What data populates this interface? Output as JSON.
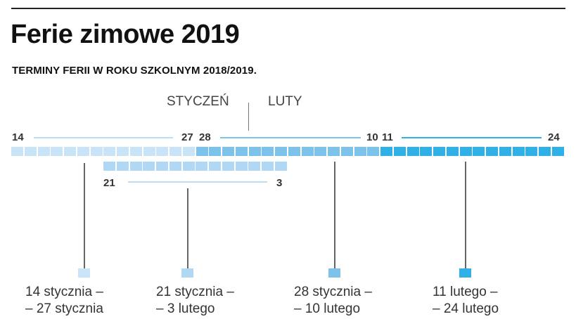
{
  "header": {
    "title": "Ferie zimowe 2019",
    "subtitle": "TERMINY FERII W ROKU SZKOLNYM 2018/2019."
  },
  "months": {
    "january": "STYCZEŃ",
    "february": "LUTY"
  },
  "ticks": {
    "t14": "14",
    "t27": "27",
    "t28": "28",
    "t10": "10",
    "t11": "11",
    "t24": "24",
    "t21": "21",
    "t3": "3"
  },
  "colors": {
    "group1": "#c9e3f7",
    "group2": "#b0d8f4",
    "group3": "#7cc3ec",
    "group4": "#2fb0e6",
    "line1": "#bcdcf2",
    "line3": "#7cc3ec",
    "line4": "#2fb0e6"
  },
  "legend": [
    {
      "line1": "14 stycznia –",
      "line2": "– 27 stycznia"
    },
    {
      "line1": "21 stycznia –",
      "line2": "– 3 lutego"
    },
    {
      "line1": "28 stycznia –",
      "line2": "– 10 lutego"
    },
    {
      "line1": "11 lutego –",
      "line2": "– 24 lutego"
    }
  ],
  "chart_data": {
    "type": "table",
    "title": "Ferie zimowe 2019",
    "subtitle": "TERMINY FERII W ROKU SZKOLNYM 2018/2019.",
    "axis": {
      "start": "14 stycznia 2019",
      "end": "24 lutego 2019",
      "days": 42,
      "months": [
        "STYCZEŃ",
        "LUTY"
      ]
    },
    "series": [
      {
        "name": "14 stycznia – 27 stycznia",
        "start_day": 14,
        "start_month": "styczeń",
        "end_day": 27,
        "end_month": "styczeń",
        "days": 14,
        "color": "#c9e3f7",
        "row": 1
      },
      {
        "name": "21 stycznia – 3 lutego",
        "start_day": 21,
        "start_month": "styczeń",
        "end_day": 3,
        "end_month": "luty",
        "days": 14,
        "color": "#b0d8f4",
        "row": 2
      },
      {
        "name": "28 stycznia – 10 lutego",
        "start_day": 28,
        "start_month": "styczeń",
        "end_day": 10,
        "end_month": "luty",
        "days": 14,
        "color": "#7cc3ec",
        "row": 1
      },
      {
        "name": "11 lutego – 24 lutego",
        "start_day": 11,
        "start_month": "luty",
        "end_day": 24,
        "end_month": "luty",
        "days": 14,
        "color": "#2fb0e6",
        "row": 1
      }
    ]
  }
}
